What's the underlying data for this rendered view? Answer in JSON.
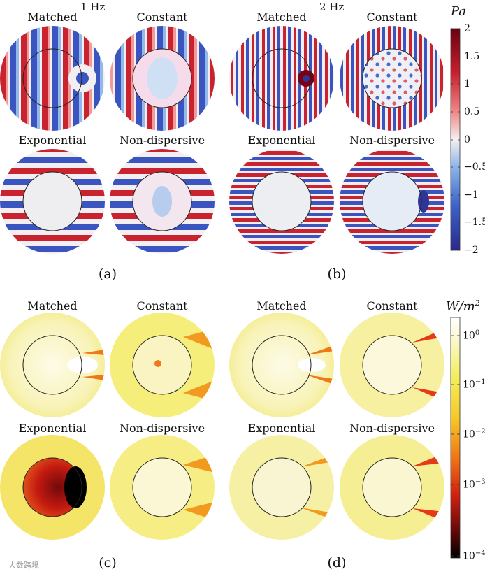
{
  "figure": {
    "top_frequencies": {
      "left": "1 Hz",
      "right": "2 Hz"
    },
    "pressure_unit": "Pa",
    "intensity_unit": "W/m",
    "intensity_unit_exp": "2",
    "pressure_ticks": [
      "2",
      "1.5",
      "1",
      "0.5",
      "0",
      "−0.5",
      "−1",
      "−1.5",
      "−2"
    ],
    "intensity_ticks": [
      {
        "base": "10",
        "exp": "0"
      },
      {
        "base": "10",
        "exp": "−1"
      },
      {
        "base": "10",
        "exp": "−2"
      },
      {
        "base": "10",
        "exp": "−3"
      },
      {
        "base": "10",
        "exp": "−4"
      }
    ],
    "subfigure_labels": {
      "a": "(a)",
      "b": "(b)",
      "c": "(c)",
      "d": "(d)"
    },
    "panel_labels": [
      "Matched",
      "Constant",
      "Exponential",
      "Non-dispersive"
    ],
    "colors": {
      "pressure_high": "#7a0014",
      "pressure_low": "#2f3594",
      "intensity_low": "#000000",
      "intensity_high": "#ffffff",
      "intensity_mid": "#f3ee5a"
    },
    "watermark": "大数跨境"
  }
}
